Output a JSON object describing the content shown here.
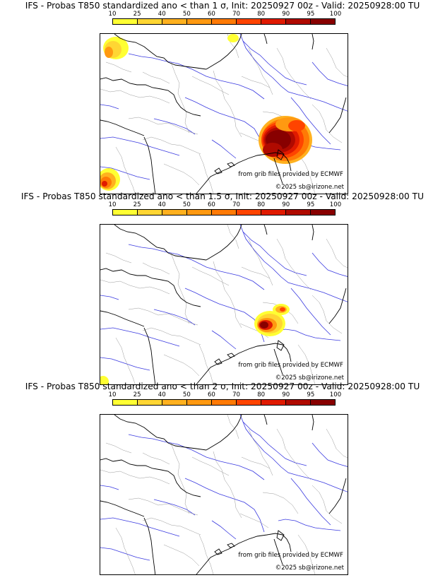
{
  "colorbar": {
    "ticks": [
      "10",
      "25",
      "40",
      "50",
      "60",
      "70",
      "80",
      "90",
      "95",
      "100"
    ],
    "colors": [
      "#ffff33",
      "#ffd633",
      "#ffb11f",
      "#ff9911",
      "#ff7a05",
      "#ff4400",
      "#e01a00",
      "#b00a00",
      "#880000"
    ]
  },
  "panels": [
    {
      "title": "IFS - Probas T850  standardized ano < than 1 σ, Init: 20250927 00z - Valid: 20250928:00 TU",
      "source": "from grib files provided by ECMWF",
      "copyright": "©2025 sb@irizone.net"
    },
    {
      "title": "IFS - Probas T850  standardized ano < than 1.5 σ, Init: 20250927 00z - Valid: 20250928:00 TU",
      "source": "from grib files provided by ECMWF",
      "copyright": "©2025 sb@irizone.net"
    },
    {
      "title": "IFS - Probas T850  standardized ano < than 2 σ, Init: 20250927 00z - Valid: 20250928:00 TU",
      "source": "from grib files provided by ECMWF",
      "copyright": "©2025 sb@irizone.net"
    }
  ]
}
